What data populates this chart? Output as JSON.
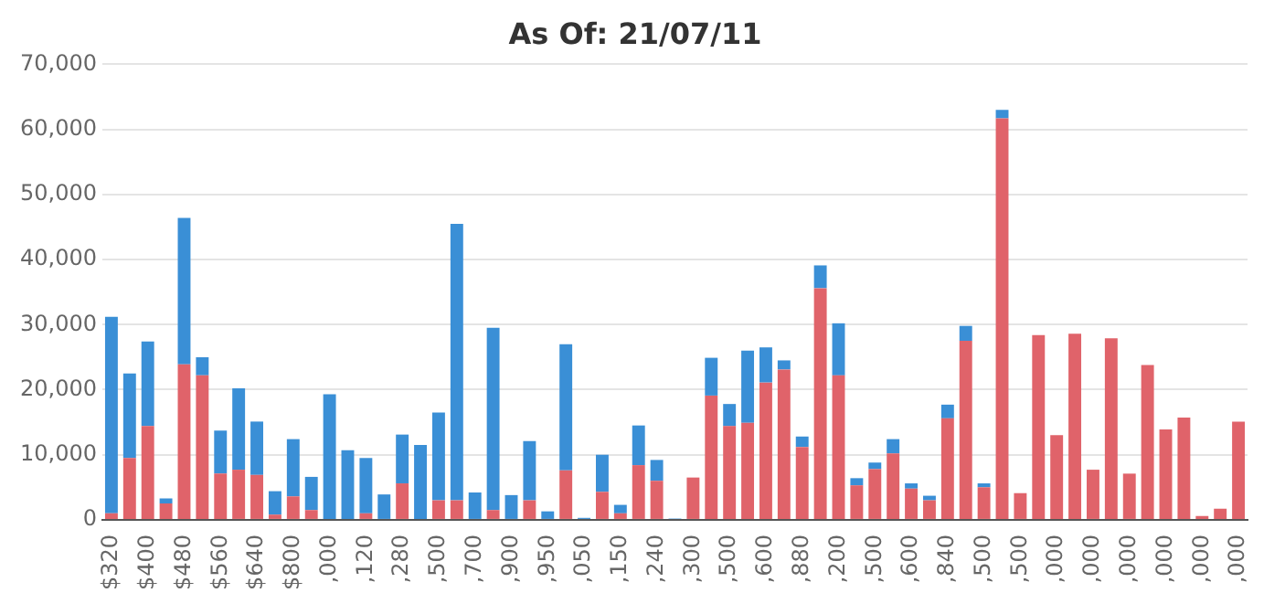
{
  "chart_data": {
    "type": "bar",
    "title": "As Of: 21/07/11",
    "stacked": true,
    "grid": "y",
    "legend": false,
    "categories": [
      "$320",
      null,
      "$400",
      null,
      "$480",
      null,
      "$560",
      null,
      "$640",
      null,
      "$800",
      null,
      ",000",
      null,
      ",120",
      null,
      ",280",
      null,
      ",500",
      null,
      ",700",
      null,
      ",900",
      null,
      ",950",
      null,
      ",050",
      null,
      ",150",
      null,
      ",240",
      null,
      ",300",
      null,
      ",500",
      null,
      ",600",
      null,
      ",880",
      null,
      ",200",
      null,
      ",500",
      null,
      ",600",
      null,
      ",840",
      null,
      ",500",
      null,
      ",500",
      null,
      ",000",
      null,
      ",000",
      null,
      ",000",
      null,
      ",000",
      null,
      ",000",
      null,
      ",000"
    ],
    "ylim": [
      0,
      70000
    ],
    "yticks": [
      {
        "value": 0,
        "label": "0"
      },
      {
        "value": 10000,
        "label": "10,000"
      },
      {
        "value": 20000,
        "label": "20,000"
      },
      {
        "value": 30000,
        "label": "30,000"
      },
      {
        "value": 40000,
        "label": "40,000"
      },
      {
        "value": 50000,
        "label": "50,000"
      },
      {
        "value": 60000,
        "label": "60,000"
      },
      {
        "value": 70000,
        "label": "70,000"
      }
    ],
    "series": [
      {
        "color": "#e0636a",
        "values": [
          1000,
          9500,
          14400,
          2500,
          23900,
          22200,
          7100,
          7700,
          6900,
          800,
          3600,
          1500,
          0,
          0,
          1000,
          0,
          5600,
          0,
          3000,
          3000,
          0,
          1500,
          0,
          3000,
          0,
          7600,
          0,
          4300,
          1000,
          8400,
          6000,
          0,
          6500,
          19100,
          14400,
          14900,
          21100,
          23100,
          11200,
          35600,
          22200,
          5300,
          7800,
          10200,
          4800,
          3000,
          15600,
          27500,
          5000,
          61700,
          4100,
          28400,
          13000,
          28600,
          7700,
          27900,
          7100,
          23800,
          13900,
          15700,
          600,
          1700,
          15100
        ]
      },
      {
        "color": "#3a8fd6",
        "values": [
          30200,
          13000,
          13000,
          800,
          22500,
          2800,
          6600,
          12500,
          8200,
          3600,
          8800,
          5100,
          19300,
          10700,
          8500,
          3900,
          7500,
          11500,
          13500,
          42500,
          4200,
          28000,
          3800,
          9100,
          1300,
          19400,
          300,
          5700,
          1300,
          6100,
          3200,
          200,
          0,
          5800,
          3400,
          11100,
          5400,
          1400,
          1600,
          3500,
          8000,
          1100,
          1000,
          2200,
          800,
          700,
          2100,
          2300,
          600,
          1300,
          0,
          0,
          0,
          0,
          0,
          0,
          0,
          0,
          0,
          0,
          0,
          0,
          0
        ]
      }
    ]
  }
}
